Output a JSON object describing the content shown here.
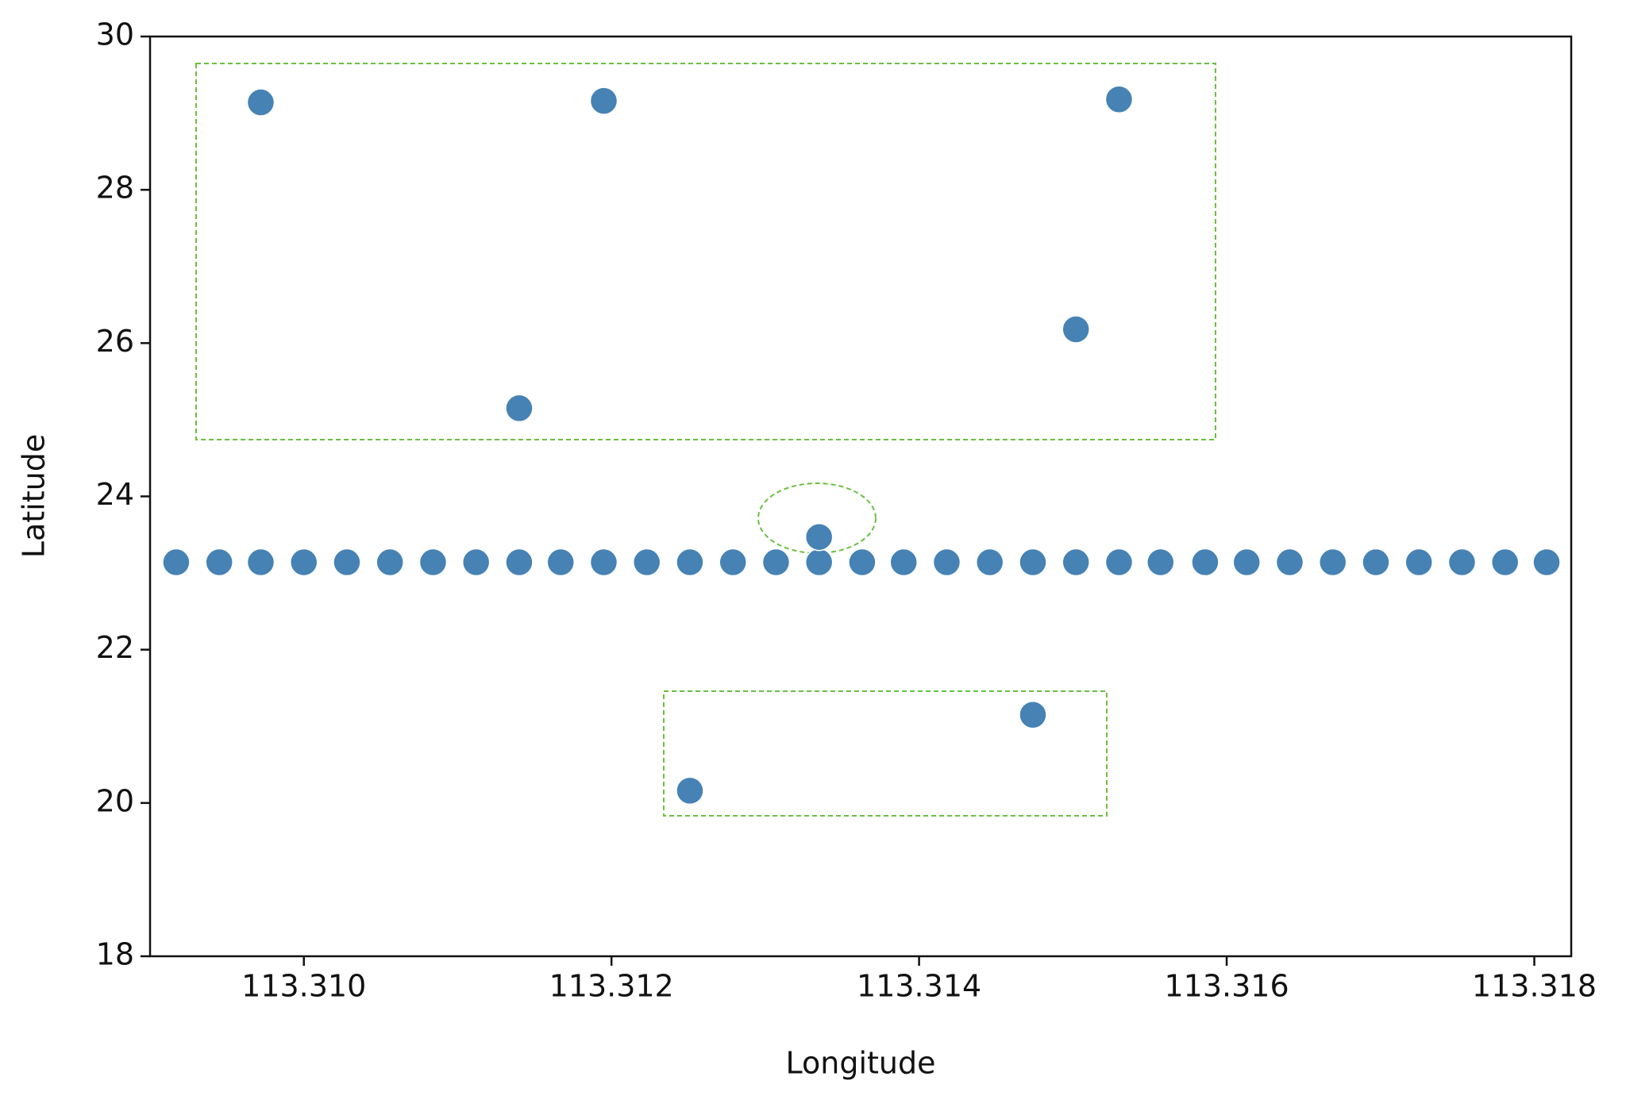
{
  "chart_data": {
    "type": "scatter",
    "xlabel": "Longitude",
    "ylabel": "Latitude",
    "color": "#4682b4",
    "x": [
      113.30917,
      113.30945,
      113.30972,
      113.31,
      113.31028,
      113.31056,
      113.31084,
      113.31112,
      113.3114,
      113.31167,
      113.31195,
      113.31223,
      113.31251,
      113.31279,
      113.31307,
      113.31335,
      113.31363,
      113.3139,
      113.31418,
      113.31446,
      113.31474,
      113.31502,
      113.3153,
      113.31557,
      113.31586,
      113.31613,
      113.31641,
      113.31669,
      113.31697,
      113.31725,
      113.31753,
      113.31781,
      113.31808,
      113.30972,
      113.31195,
      113.3153,
      113.31502,
      113.3114,
      113.31335,
      113.31474,
      113.31251
    ],
    "y": [
      23.14,
      23.14,
      23.14,
      23.14,
      23.14,
      23.14,
      23.14,
      23.14,
      23.14,
      23.14,
      23.14,
      23.14,
      23.14,
      23.14,
      23.14,
      23.14,
      23.14,
      23.14,
      23.14,
      23.14,
      23.14,
      23.14,
      23.14,
      23.14,
      23.14,
      23.14,
      23.14,
      23.14,
      23.14,
      23.14,
      23.14,
      23.14,
      23.14,
      29.14,
      29.16,
      29.18,
      26.18,
      25.15,
      23.47,
      21.15,
      20.16
    ],
    "xlim": [
      113.309,
      113.31824
    ],
    "xticks": [
      {
        "value": 113.31,
        "label": "113.310"
      },
      113.312,
      113.314,
      113.316,
      113.318
    ],
    "ylim": [
      18,
      30
    ],
    "yticks": [
      18,
      20,
      22,
      24,
      26,
      28,
      30
    ]
  }
}
